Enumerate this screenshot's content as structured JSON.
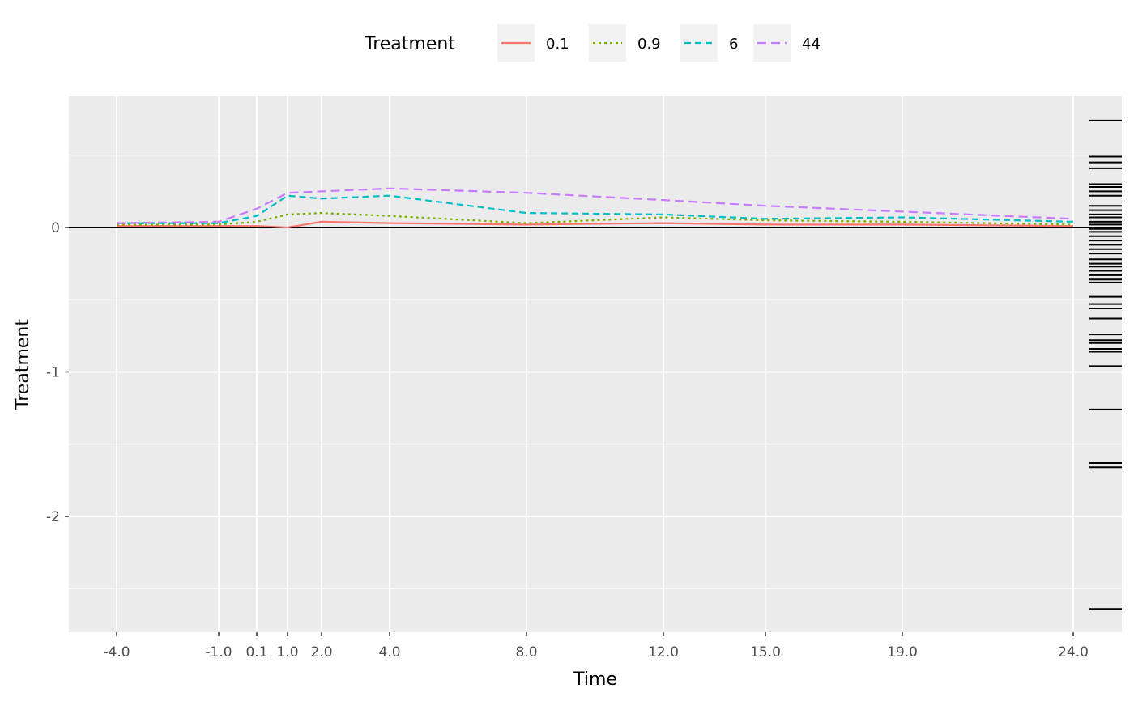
{
  "chart_data": {
    "type": "line",
    "xlabel": "Time",
    "ylabel": "Treatment",
    "x_tick_labels": [
      "-4.0",
      "-1.0",
      "0.1",
      "1.0",
      "2.0",
      "4.0",
      "8.0",
      "12.0",
      "15.0",
      "19.0",
      "24.0"
    ],
    "y_ticks": [
      0,
      -1,
      -2
    ],
    "y_tick_labels": [
      "0",
      "-1",
      "-2"
    ],
    "ylim": [
      -2.79,
      0.91
    ],
    "x": [
      -4.0,
      -1.0,
      0.1,
      1.0,
      2.0,
      4.0,
      8.0,
      12.0,
      15.0,
      19.0,
      24.0
    ],
    "reference_line_y": 0,
    "grid": true,
    "legend": {
      "title": "Treatment",
      "position": "top"
    },
    "series": [
      {
        "name": "0.1",
        "color": "#F8766D",
        "dash": "solid",
        "values": [
          0.01,
          0.01,
          0.01,
          0.0,
          0.04,
          0.03,
          0.02,
          0.03,
          0.02,
          0.02,
          0.01
        ]
      },
      {
        "name": "0.9",
        "color": "#7CAE00",
        "dash": "dotted",
        "values": [
          0.02,
          0.02,
          0.04,
          0.09,
          0.1,
          0.08,
          0.03,
          0.07,
          0.05,
          0.04,
          0.02
        ]
      },
      {
        "name": "6",
        "color": "#00BFC4",
        "dash": "dashed",
        "values": [
          0.03,
          0.03,
          0.08,
          0.22,
          0.2,
          0.22,
          0.1,
          0.09,
          0.06,
          0.07,
          0.04
        ]
      },
      {
        "name": "44",
        "color": "#C77CFF",
        "dash": "longdash",
        "values": [
          0.03,
          0.04,
          0.13,
          0.24,
          0.25,
          0.27,
          0.24,
          0.19,
          0.15,
          0.11,
          0.06
        ]
      }
    ],
    "rug_y": [
      0.74,
      0.49,
      0.45,
      0.41,
      0.3,
      0.28,
      0.25,
      0.22,
      0.15,
      0.12,
      0.09,
      0.07,
      0.04,
      0.02,
      -0.01,
      -0.03,
      -0.06,
      -0.09,
      -0.12,
      -0.15,
      -0.18,
      -0.22,
      -0.25,
      -0.27,
      -0.3,
      -0.33,
      -0.36,
      -0.38,
      -0.48,
      -0.53,
      -0.56,
      -0.63,
      -0.74,
      -0.78,
      -0.8,
      -0.84,
      -0.86,
      -0.96,
      -1.26,
      -1.63,
      -1.66,
      -2.64
    ]
  }
}
